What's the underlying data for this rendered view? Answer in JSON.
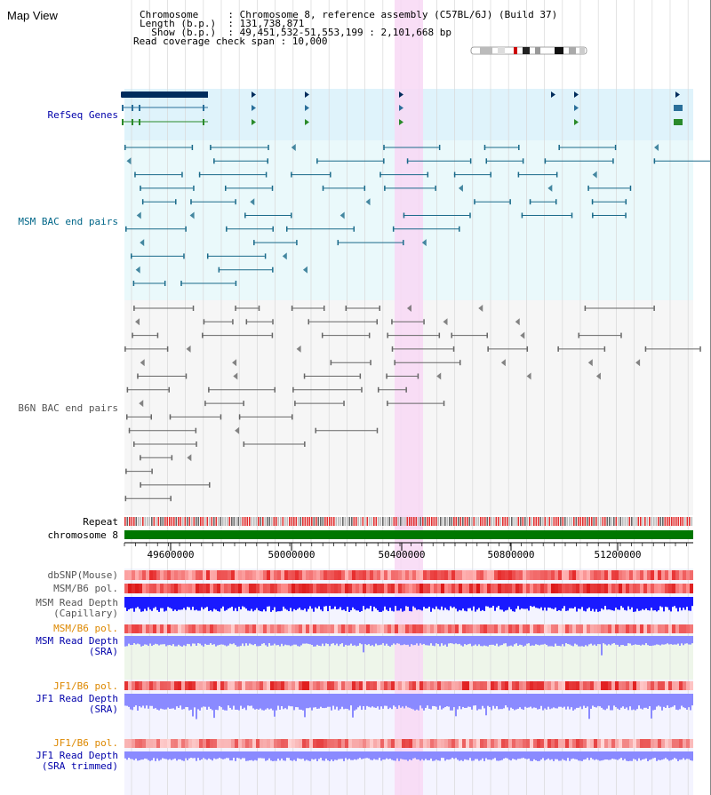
{
  "app": {
    "title": "Map View"
  },
  "info": {
    "lines": [
      "Chromosome     : Chromosome 8, reference assembly (C57BL/6J) (Build 37)",
      "Length (b.p.)  : 131,738,871",
      "  Show (b.p.)  : 49,451,532-51,553,199 : 2,101,668 bp",
      "Read coverage check span : 10,000"
    ]
  },
  "tracks": {
    "refseq": "RefSeq Genes",
    "msm_bac": "MSM BAC end pairs",
    "b6n_bac": "B6N BAC end pairs",
    "repeat": "Repeat",
    "chromosome": "chromosome 8",
    "dbsnp": "dbSNP(Mouse)",
    "msm_pol_cap": "MSM/B6 pol.",
    "msm_depth_cap": "MSM Read Depth\n(Capillary)",
    "msm_pol_sra": "MSM/B6 pol.",
    "msm_depth_sra": "MSM Read Depth\n(SRA)",
    "jf1_pol_sra": "JF1/B6 pol.",
    "jf1_depth_sra": "JF1 Read Depth\n(SRA)",
    "jf1_pol_trim": "JF1/B6 pol.",
    "jf1_depth_trim": "JF1 Read Depth\n(SRA trimmed)"
  },
  "axis": {
    "ticks": [
      "49600000",
      "50000000",
      "50400000",
      "50800000",
      "51200000"
    ]
  },
  "colors": {
    "refseq_bg": "#dff3fb",
    "bac_bg": "#eaf9fb",
    "highlight": "#f8d8f4",
    "gene": "#002c5c",
    "msm_feature": "#1a6a8a",
    "b6n_feature": "#666666",
    "chromosome": "#007700",
    "depth_cap": "#1a1aff",
    "depth_sra": "#8a8aff"
  }
}
